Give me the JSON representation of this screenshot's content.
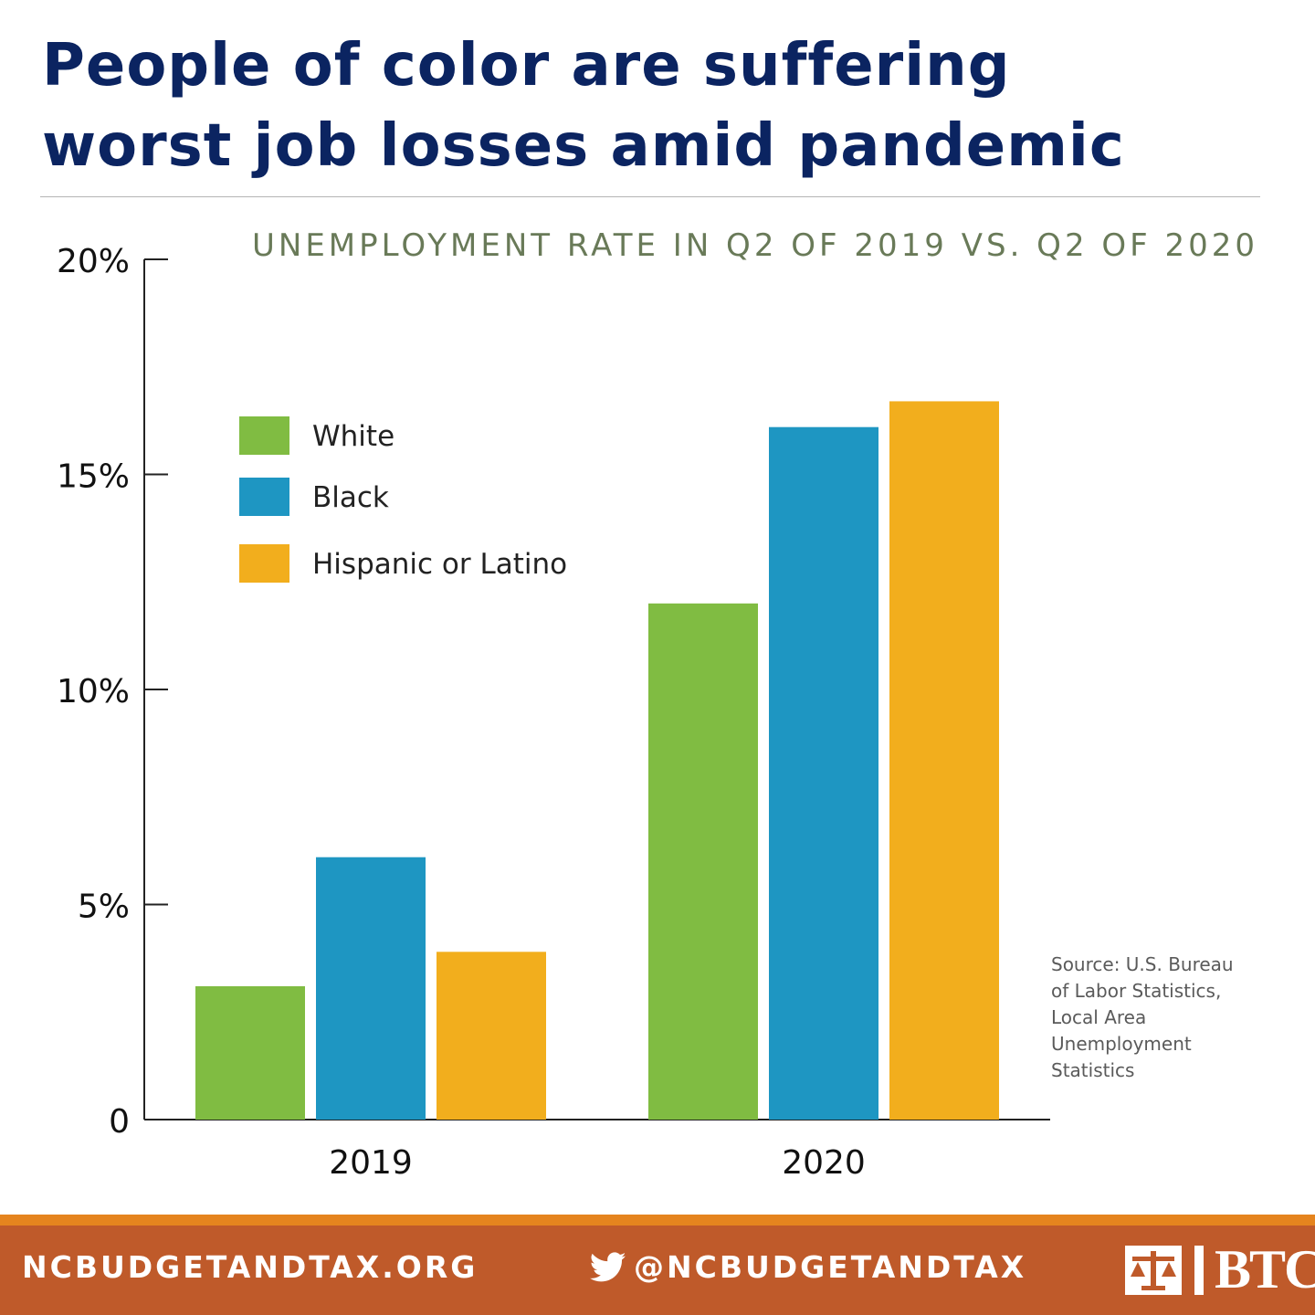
{
  "header": {
    "title_line1": "People of color are suffering",
    "title_line2": "worst job losses amid pandemic",
    "subtitle": "UNEMPLOYMENT RATE IN Q2 OF 2019 VS. Q2 OF 2020"
  },
  "chart_data": {
    "type": "bar",
    "title": "UNEMPLOYMENT RATE IN Q2 OF 2019 VS. Q2 OF 2020",
    "categories": [
      "2019",
      "2020"
    ],
    "series": [
      {
        "name": "White",
        "color": "#80bc42",
        "values": [
          3.1,
          12.0
        ]
      },
      {
        "name": "Black",
        "color": "#1e96c2",
        "values": [
          6.1,
          16.1
        ]
      },
      {
        "name": "Hispanic or Latino",
        "color": "#f2ae1d",
        "values": [
          3.9,
          16.7
        ]
      }
    ],
    "ylim": [
      0,
      20
    ],
    "yticks": [
      0,
      5,
      10,
      15,
      20
    ],
    "ytick_labels": [
      "0",
      "5%",
      "10%",
      "15%",
      "20%"
    ],
    "xlabel": "",
    "ylabel": "",
    "legend_position": "top-left",
    "grid": false
  },
  "legend": {
    "items": [
      {
        "label": "White",
        "color": "#80bc42"
      },
      {
        "label": "Black",
        "color": "#1e96c2"
      },
      {
        "label": "Hispanic or Latino",
        "color": "#f2ae1d"
      }
    ]
  },
  "source": {
    "line1": "Source: U.S. Bureau",
    "line2": "of Labor Statistics,",
    "line3": "Local Area",
    "line4": "Unemployment",
    "line5": "Statistics"
  },
  "footer": {
    "website": "NCBUDGETANDTAX.ORG",
    "twitter_handle": "@NCBUDGETANDTAX",
    "logo_text": "BTC",
    "colors": {
      "band": "#bf5a2a",
      "accent": "#e5841e"
    },
    "icons": {
      "twitter": "twitter-bird-icon",
      "logo": "budget-tax-center-logo-icon"
    }
  }
}
